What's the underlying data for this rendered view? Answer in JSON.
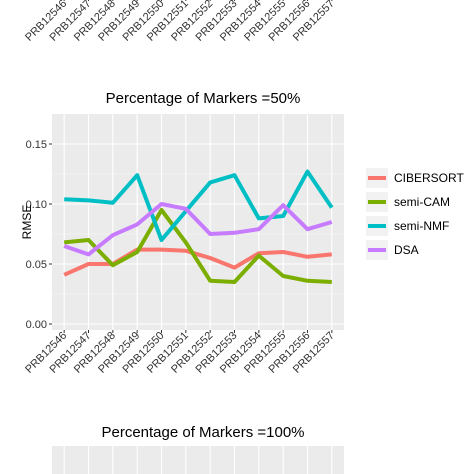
{
  "chart_data": [
    {
      "type": "line",
      "title": "",
      "partial": "top",
      "categories": [
        "PRB12546",
        "PRB12547",
        "PRB12548",
        "PRB12549",
        "PRB12550",
        "PRB12551",
        "PRB12552",
        "PRB12553",
        "PRB12554",
        "PRB12555",
        "PRB12556",
        "PRB12557"
      ]
    },
    {
      "type": "line",
      "title": "Percentage of Markers =50%",
      "xlabel": "",
      "ylabel": "RMSE",
      "ylim": [
        -0.005,
        0.175
      ],
      "yticks": [
        "0.00",
        "0.05",
        "0.10",
        "0.15"
      ],
      "grid": true,
      "legend_position": "right",
      "categories": [
        "PRB12546",
        "PRB12547",
        "PRB12548",
        "PRB12549",
        "PRB12550",
        "PRB12551",
        "PRB12552",
        "PRB12553",
        "PRB12554",
        "PRB12555",
        "PRB12556",
        "PRB12557"
      ],
      "series": [
        {
          "name": "CIBERSORT",
          "color": "#F8766D",
          "values": [
            0.041,
            0.05,
            0.05,
            0.062,
            0.062,
            0.061,
            0.055,
            0.047,
            0.059,
            0.06,
            0.056,
            0.058
          ]
        },
        {
          "name": "semi-CAM",
          "color": "#7CAE00",
          "values": [
            0.068,
            0.07,
            0.049,
            0.06,
            0.095,
            0.068,
            0.036,
            0.035,
            0.057,
            0.04,
            0.036,
            0.035
          ]
        },
        {
          "name": "semi-NMF",
          "color": "#00BFC4",
          "values": [
            0.104,
            0.103,
            0.101,
            0.124,
            0.07,
            0.094,
            0.118,
            0.124,
            0.088,
            0.09,
            0.127,
            0.097
          ]
        },
        {
          "name": "DSA",
          "color": "#C77CFF",
          "values": [
            0.065,
            0.058,
            0.074,
            0.083,
            0.1,
            0.096,
            0.075,
            0.076,
            0.079,
            0.099,
            0.079,
            0.085
          ]
        }
      ]
    },
    {
      "type": "line",
      "title": "Percentage of Markers =100%",
      "partial": "bottom"
    }
  ]
}
